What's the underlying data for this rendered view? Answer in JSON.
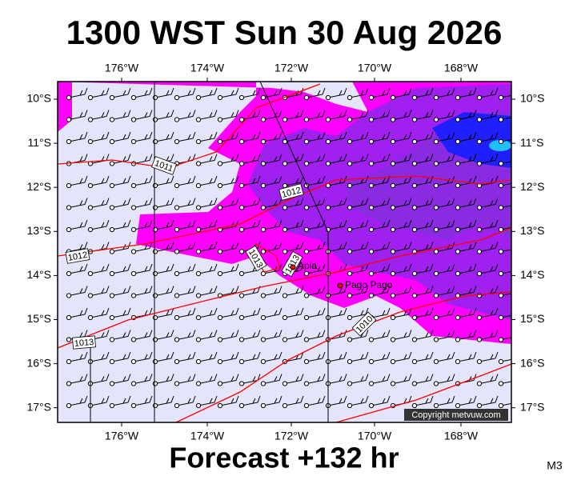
{
  "header": {
    "title": "1300 WST Sun 30 Aug 2026"
  },
  "footer": {
    "subtitle": "Forecast +132 hr",
    "code": "M3"
  },
  "map": {
    "lon_labels": [
      "176°W",
      "174°W",
      "172°W",
      "170°W",
      "168°W"
    ],
    "lat_labels": [
      "10°S",
      "11°S",
      "12°S",
      "13°S",
      "14°S",
      "15°S",
      "16°S",
      "17°S"
    ],
    "places": [
      "Apia",
      "Pago Pago"
    ],
    "isobar_labels": [
      "1011",
      "1012",
      "1012",
      "1013",
      "1013",
      "1013",
      "1010"
    ],
    "copyright": "Copyright metvuw.com"
  }
}
